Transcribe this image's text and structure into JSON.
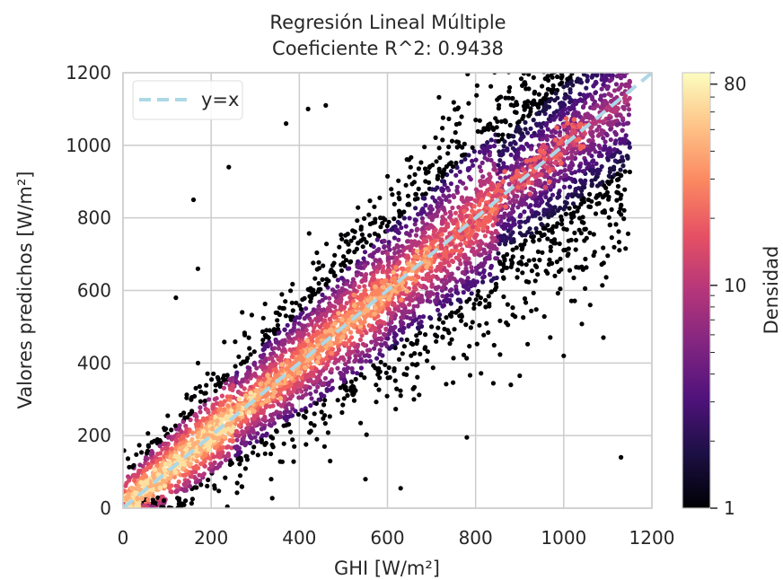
{
  "chart_data": {
    "type": "heatmap",
    "subtype": "hexbin density scatter",
    "title": "Regresión Lineal Múltiple",
    "subtitle": "Coeficiente R^2: 0.9438",
    "xlabel": "GHI [W/m²]",
    "ylabel": "Valores predichos [W/m²]",
    "xlim": [
      0,
      1200
    ],
    "ylim": [
      0,
      1200
    ],
    "xticks": [
      "0",
      "200",
      "400",
      "600",
      "800",
      "1000",
      "1200"
    ],
    "yticks": [
      "0",
      "200",
      "400",
      "600",
      "800",
      "1000",
      "1200"
    ],
    "grid": true,
    "legend": {
      "position": "top-left",
      "entries": [
        {
          "label": "y=x",
          "style": "dashed",
          "color": "#add8e6"
        }
      ]
    },
    "reference_line": {
      "label": "y=x",
      "from": [
        0,
        0
      ],
      "to": [
        1200,
        1200
      ]
    },
    "colorbar": {
      "label": "Densidad",
      "scale": "log",
      "range": [
        1,
        90
      ],
      "ticks": [
        "1",
        "10",
        "80"
      ],
      "colormap": "magma",
      "colors": [
        "#000004",
        "#1c1044",
        "#4f127b",
        "#812581",
        "#b5367a",
        "#e55064",
        "#fb8761",
        "#fec287",
        "#fcfdbf"
      ]
    },
    "density_band": {
      "description_values": [
        {
          "x": 100,
          "y_center": 100,
          "y_spread_low": 0,
          "y_spread_high": 300
        },
        {
          "x": 400,
          "y_center": 400,
          "y_spread_low": 220,
          "y_spread_high": 620
        },
        {
          "x": 700,
          "y_center": 700,
          "y_spread_low": 470,
          "y_spread_high": 900
        },
        {
          "x": 1000,
          "y_center": 1000,
          "y_spread_low": 780,
          "y_spread_high": 1100
        }
      ]
    },
    "outliers": [
      {
        "x": 240,
        "y": 940
      },
      {
        "x": 160,
        "y": 850
      },
      {
        "x": 420,
        "y": 1100
      },
      {
        "x": 370,
        "y": 1060
      },
      {
        "x": 460,
        "y": 1110
      },
      {
        "x": 1130,
        "y": 140
      },
      {
        "x": 630,
        "y": 55
      },
      {
        "x": 1000,
        "y": 420
      },
      {
        "x": 780,
        "y": 195
      },
      {
        "x": 660,
        "y": 300
      },
      {
        "x": 120,
        "y": 580
      },
      {
        "x": 900,
        "y": 365
      },
      {
        "x": 470,
        "y": 130
      },
      {
        "x": 550,
        "y": 80
      },
      {
        "x": 700,
        "y": 500
      },
      {
        "x": 170,
        "y": 660
      },
      {
        "x": 1060,
        "y": 560
      },
      {
        "x": 880,
        "y": 340
      },
      {
        "x": 1090,
        "y": 470
      }
    ]
  }
}
